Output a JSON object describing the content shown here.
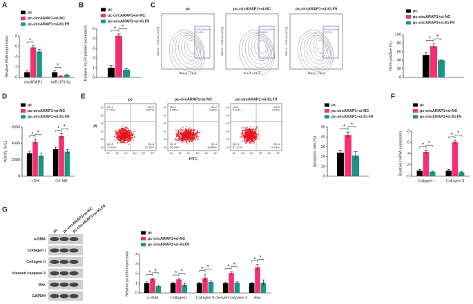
{
  "panel_labels": [
    "A",
    "B",
    "C",
    "D",
    "E",
    "F",
    "G"
  ],
  "chart_data": [
    {
      "type": "bar",
      "y_label": "Relative RNA expression",
      "categories": [
        "circARAP1",
        "miR-379-5p"
      ],
      "series": [
        {
          "name": "pc",
          "color": "#000000",
          "values": [
            1,
            1
          ],
          "errors": [
            0.25,
            0.3
          ]
        },
        {
          "name": "pc-circARAP1+si-NC",
          "color": "#f5306f",
          "values": [
            5.8,
            0.25
          ],
          "errors": [
            0.35,
            0.05
          ]
        },
        {
          "name": "pc-circARAP1+si-KLF9",
          "color": "#1a9688",
          "values": [
            5,
            0.45
          ],
          "errors": [
            0.4,
            0.1
          ]
        }
      ],
      "ylim": [
        0,
        8
      ],
      "yticks": [
        0,
        2,
        4,
        6,
        8
      ],
      "significance": [
        {
          "category": 0,
          "pair": [
            0,
            1
          ],
          "label": "*"
        },
        {
          "category": 1,
          "pair": [
            0,
            1
          ],
          "label": "*"
        }
      ]
    },
    {
      "type": "bar",
      "y_label": "Relative KLF9 protein expression",
      "categories": [
        null
      ],
      "series": [
        {
          "name": "pc",
          "color": "#000000",
          "values": [
            1
          ],
          "errors": [
            0.25
          ]
        },
        {
          "name": "pc-circARAP1+si-NC",
          "color": "#f5306f",
          "values": [
            4.3
          ],
          "errors": [
            0.2
          ]
        },
        {
          "name": "pc-circARAP1+si-KLF9",
          "color": "#1a9688",
          "values": [
            0.8
          ],
          "errors": [
            0.1
          ]
        }
      ],
      "ylim": [
        0,
        5
      ],
      "yticks": [
        0,
        1,
        2,
        3,
        4,
        5
      ],
      "significance": [
        {
          "category": 0,
          "pair": [
            0,
            1
          ],
          "label": "*"
        },
        {
          "category": 0,
          "pair": [
            1,
            2
          ],
          "label": "*"
        }
      ]
    },
    {
      "type": "bar",
      "y_label": "ROS positive (%)",
      "categories": [
        null
      ],
      "series": [
        {
          "name": "pc",
          "color": "#000000",
          "values": [
            52
          ],
          "errors": [
            6
          ]
        },
        {
          "name": "pc-circARAP1+si-NC",
          "color": "#f5306f",
          "values": [
            73
          ],
          "errors": [
            5
          ]
        },
        {
          "name": "pc-circARAP1+si-KLF9",
          "color": "#1a9688",
          "values": [
            40
          ],
          "errors": [
            0.5
          ]
        }
      ],
      "ylim": [
        0,
        100
      ],
      "yticks": [
        0,
        20,
        40,
        60,
        80,
        100
      ],
      "significance": [
        {
          "category": 0,
          "pair": [
            0,
            1
          ],
          "label": "*"
        },
        {
          "category": 0,
          "pair": [
            1,
            2
          ],
          "label": "*"
        }
      ]
    },
    {
      "type": "bar",
      "y_label": "Activity (U/L)",
      "categories": [
        "LDH",
        "CK MB"
      ],
      "series": [
        {
          "name": "pc",
          "color": "#000000",
          "values": [
            2800,
            3300
          ],
          "errors": [
            250,
            250
          ]
        },
        {
          "name": "pc-circARAP1+si-NC",
          "color": "#f5306f",
          "values": [
            4200,
            4900
          ],
          "errors": [
            300,
            300
          ]
        },
        {
          "name": "pc-circARAP1+si-KLF9",
          "color": "#1a9688",
          "values": [
            2500,
            3000
          ],
          "errors": [
            350,
            250
          ]
        }
      ],
      "ylim": [
        0,
        6000
      ],
      "yticks": [
        0,
        2000,
        4000,
        6000
      ],
      "significance": [
        {
          "category": 0,
          "pair": [
            0,
            1
          ],
          "label": "*"
        },
        {
          "category": 0,
          "pair": [
            1,
            2
          ],
          "label": "*"
        },
        {
          "category": 1,
          "pair": [
            0,
            1
          ],
          "label": "*"
        },
        {
          "category": 1,
          "pair": [
            1,
            2
          ],
          "label": "*"
        }
      ]
    },
    {
      "type": "bar",
      "y_label": "Apoptosis rate (%)",
      "categories": [
        null
      ],
      "series": [
        {
          "name": "pc",
          "color": "#000000",
          "values": [
            24
          ],
          "errors": [
            2.5
          ]
        },
        {
          "name": "pc-circARAP1+si-NC",
          "color": "#f5306f",
          "values": [
            42
          ],
          "errors": [
            3
          ]
        },
        {
          "name": "pc-circARAP1+si-KLF9",
          "color": "#1a9688",
          "values": [
            21
          ],
          "errors": [
            4
          ]
        }
      ],
      "ylim": [
        0,
        50
      ],
      "yticks": [
        0,
        10,
        20,
        30,
        40,
        50
      ],
      "significance": [
        {
          "category": 0,
          "pair": [
            0,
            1
          ],
          "label": "*"
        },
        {
          "category": 0,
          "pair": [
            1,
            2
          ],
          "label": "*"
        }
      ]
    },
    {
      "type": "bar",
      "y_label": "Relative mRNA expression",
      "categories": [
        "Collagen I",
        "Collagen II"
      ],
      "series": [
        {
          "name": "pc",
          "color": "#000000",
          "values": [
            1,
            1
          ],
          "errors": [
            0.2,
            0.2
          ]
        },
        {
          "name": "pc-circARAP1+si-NC",
          "color": "#f5306f",
          "values": [
            4.3,
            6.1
          ],
          "errors": [
            0.3,
            0.3
          ]
        },
        {
          "name": "pc-circARAP1+si-KLF9",
          "color": "#1a9688",
          "values": [
            0.8,
            0.7
          ],
          "errors": [
            0.1,
            0.1
          ]
        }
      ],
      "ylim": [
        0,
        8
      ],
      "yticks": [
        0,
        2,
        4,
        6,
        8
      ],
      "significance": [
        {
          "category": 0,
          "pair": [
            0,
            1
          ],
          "label": "*"
        },
        {
          "category": 0,
          "pair": [
            1,
            2
          ],
          "label": "*"
        },
        {
          "category": 1,
          "pair": [
            0,
            1
          ],
          "label": "*"
        },
        {
          "category": 1,
          "pair": [
            1,
            2
          ],
          "label": "*"
        }
      ]
    },
    {
      "type": "bar",
      "y_label": "Relative protein expression",
      "categories": [
        "α-SMA",
        "Collagen I",
        "Collagen II",
        "cleaved caspase-3",
        "Bax"
      ],
      "series": [
        {
          "name": "pc",
          "color": "#000000",
          "values": [
            1,
            1,
            1,
            1,
            1
          ],
          "errors": [
            0.15,
            0.1,
            0.1,
            0.1,
            0.1
          ]
        },
        {
          "name": "pc-circARAP1+si-NC",
          "color": "#f5306f",
          "values": [
            1.45,
            1.4,
            1.55,
            2.05,
            2.65
          ],
          "errors": [
            0.1,
            0.1,
            0.4,
            0.15,
            0.3
          ]
        },
        {
          "name": "pc-circARAP1+si-KLF9",
          "color": "#1a9688",
          "values": [
            0.7,
            0.85,
            1.15,
            1.05,
            1.05
          ],
          "errors": [
            0.1,
            0.15,
            0.1,
            0.1,
            0.3
          ]
        }
      ],
      "ylim": [
        0,
        4
      ],
      "yticks": [
        0,
        1,
        2,
        3,
        4
      ],
      "significance": [
        {
          "category": 0,
          "pair": [
            0,
            1
          ],
          "label": "*"
        },
        {
          "category": 0,
          "pair": [
            1,
            2
          ],
          "label": "*"
        },
        {
          "category": 1,
          "pair": [
            0,
            1
          ],
          "label": "*"
        },
        {
          "category": 1,
          "pair": [
            1,
            2
          ],
          "label": "*"
        },
        {
          "category": 2,
          "pair": [
            0,
            1
          ],
          "label": "*"
        },
        {
          "category": 2,
          "pair": [
            1,
            2
          ],
          "label": "*"
        },
        {
          "category": 3,
          "pair": [
            0,
            1
          ],
          "label": "*"
        },
        {
          "category": 3,
          "pair": [
            1,
            2
          ],
          "label": "*"
        },
        {
          "category": 4,
          "pair": [
            0,
            1
          ],
          "label": "*"
        },
        {
          "category": 4,
          "pair": [
            1,
            2
          ],
          "label": "*"
        }
      ]
    }
  ],
  "ros_flow": {
    "x_label": "BL2-A :: PE-A",
    "y_label": "SSC-A :: SSC-A (*10^3)",
    "gate": "ROS positive",
    "plots": [
      {
        "title": "pc",
        "value": "32.98%"
      },
      {
        "title": "pc-circARAP1+si-NC",
        "value": "74.83%"
      },
      {
        "title": "pc-circARAP1+si-KLF9",
        "value": "42.37%"
      }
    ]
  },
  "apoptosis_flow": {
    "x_label": "FITC",
    "y_label": "PI",
    "yticks": [
      "10⁷",
      "10⁶",
      "10⁵",
      "10⁴",
      "10³",
      "10²"
    ],
    "xticks": [
      "10²",
      "10³",
      "10⁴",
      "10⁵",
      "10⁶",
      "10⁷"
    ],
    "plots": [
      {
        "title": "pc",
        "quadrants": [
          [
            "Q2-1",
            "0.74%"
          ],
          [
            "Q2-2",
            "3.67%"
          ],
          [
            "Q2-3",
            "75.42%"
          ],
          [
            "Q2-4",
            "20.16%"
          ]
        ]
      },
      {
        "title": "pc-circARAP1+si-NC",
        "quadrants": [
          [
            "Q2-1",
            "0.66%"
          ],
          [
            "Q2-2",
            "3.46%"
          ],
          [
            "Q2-3",
            "56.64%"
          ],
          [
            "Q2-4",
            "38.86%"
          ]
        ]
      },
      {
        "title": "pc-circARAP1+si-KLF9",
        "quadrants": [
          [
            "Q2-1",
            "0.51%"
          ],
          [
            "Q2-2",
            "3.97%"
          ],
          [
            "Q2-3",
            "81.21%"
          ],
          [
            "Q2-4",
            "14.41%"
          ]
        ]
      }
    ]
  },
  "western_blot": {
    "columns": [
      "pc",
      "pc-circARAP1+si-NC",
      "pc-circARAP1+si-KLF9"
    ],
    "rows": [
      "α-SMA",
      "Collagen I",
      "Collagen II",
      "cleaved caspase-3",
      "Bax",
      "GAPDH"
    ]
  }
}
